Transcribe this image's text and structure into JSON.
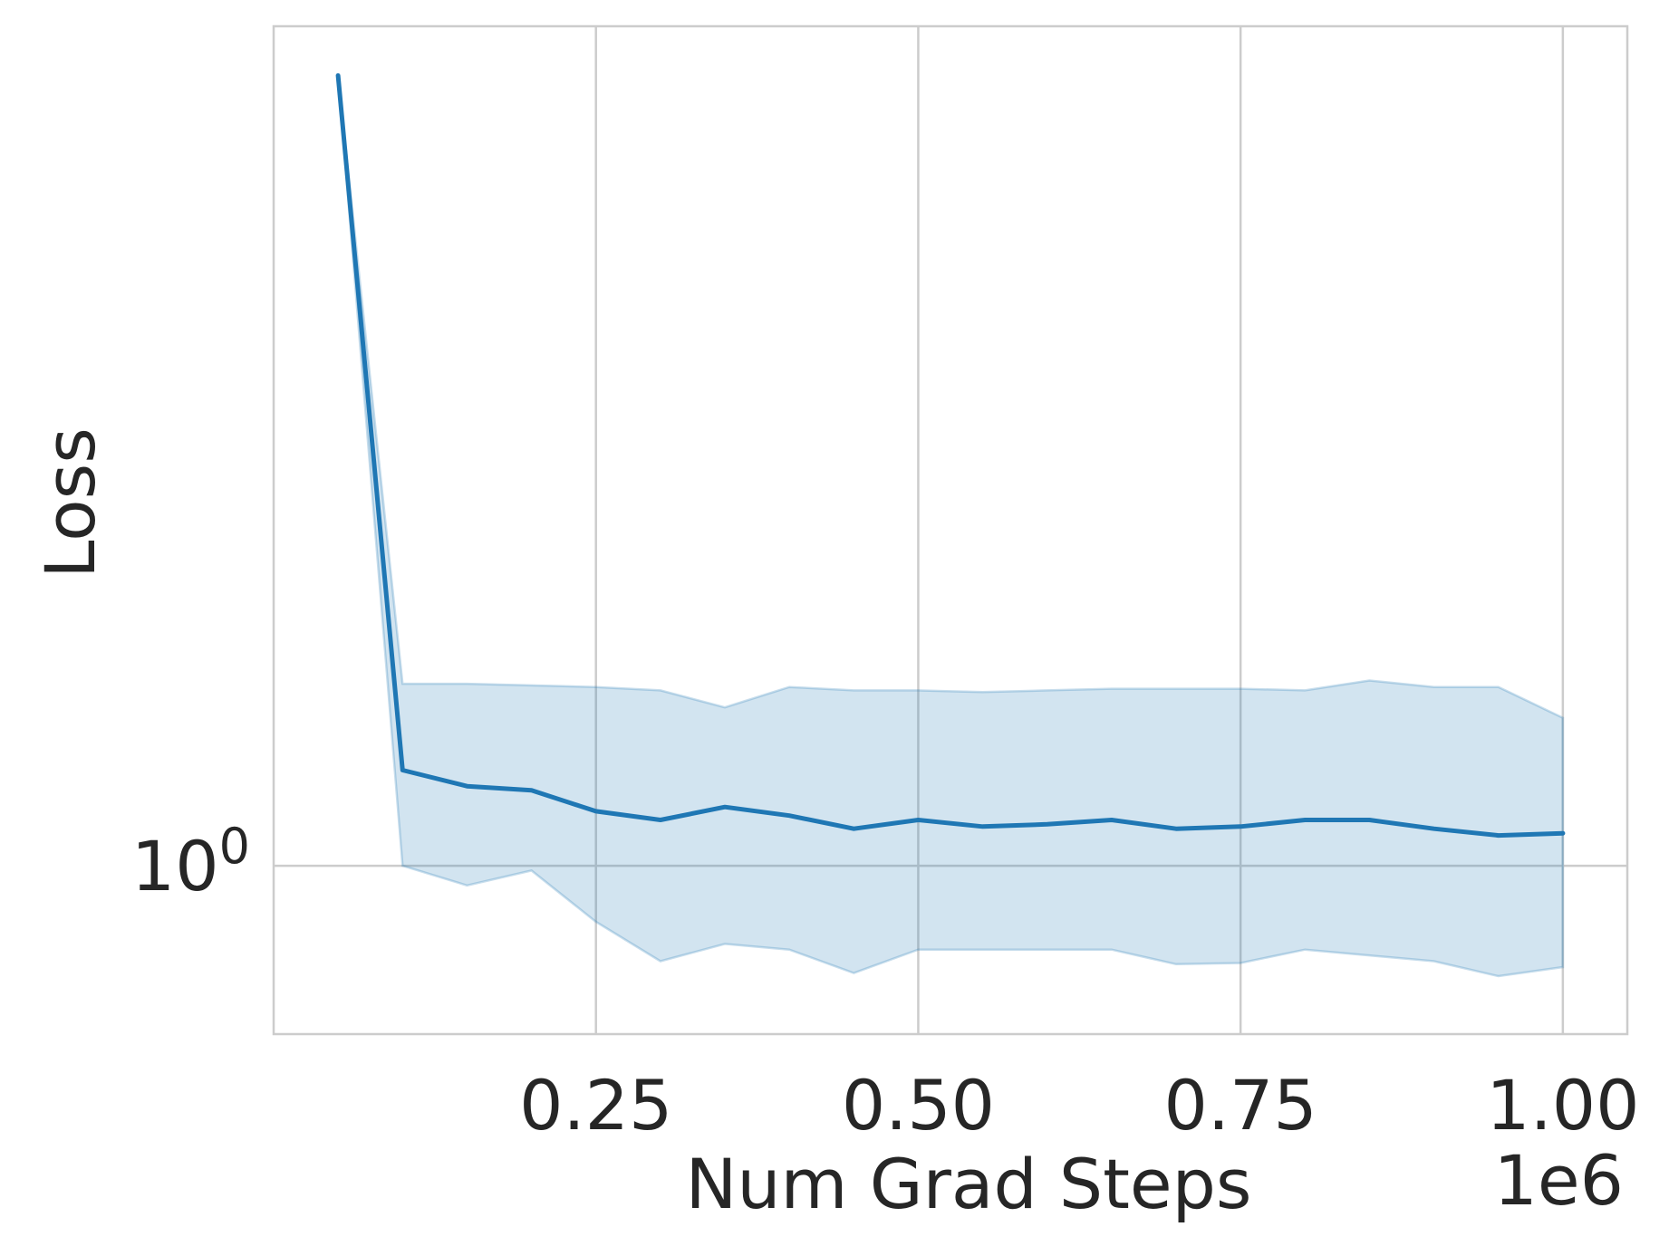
{
  "chart_data": {
    "type": "line",
    "title": "",
    "xlabel": "Num Grad Steps",
    "ylabel": "Loss",
    "x_offset_text": "1e6",
    "y_scale": "log",
    "grid": true,
    "legend": "none",
    "xlim": [
      0.0,
      1.05
    ],
    "ylim_log10": [
      -0.152,
      0.758
    ],
    "x_ticks": [
      0.25,
      0.5,
      0.75,
      1.0
    ],
    "x_tick_labels": [
      "0.25",
      "0.50",
      "0.75",
      "1.00"
    ],
    "y_ticks": [
      1
    ],
    "y_tick_labels": [
      {
        "base": "10",
        "exp": "0"
      }
    ],
    "series": [
      {
        "color": "#1f77b4",
        "band_color": "#1f77b4",
        "x": [
          0.05,
          0.1,
          0.15,
          0.2,
          0.25,
          0.3,
          0.35,
          0.4,
          0.45,
          0.5,
          0.55,
          0.6,
          0.65,
          0.7,
          0.75,
          0.8,
          0.85,
          0.9,
          0.95,
          1.0
        ],
        "y": [
          5.17,
          1.22,
          1.18,
          1.17,
          1.12,
          1.1,
          1.13,
          1.11,
          1.08,
          1.1,
          1.085,
          1.09,
          1.1,
          1.08,
          1.085,
          1.1,
          1.1,
          1.08,
          1.065,
          1.07
        ],
        "lower": [
          5.17,
          1.0,
          0.96,
          0.99,
          0.89,
          0.82,
          0.85,
          0.84,
          0.8,
          0.84,
          0.84,
          0.84,
          0.84,
          0.815,
          0.817,
          0.84,
          0.83,
          0.82,
          0.795,
          0.81
        ],
        "upper": [
          5.17,
          1.46,
          1.46,
          1.455,
          1.45,
          1.44,
          1.39,
          1.45,
          1.44,
          1.44,
          1.435,
          1.44,
          1.445,
          1.445,
          1.445,
          1.44,
          1.47,
          1.45,
          1.45,
          1.36
        ]
      }
    ]
  }
}
